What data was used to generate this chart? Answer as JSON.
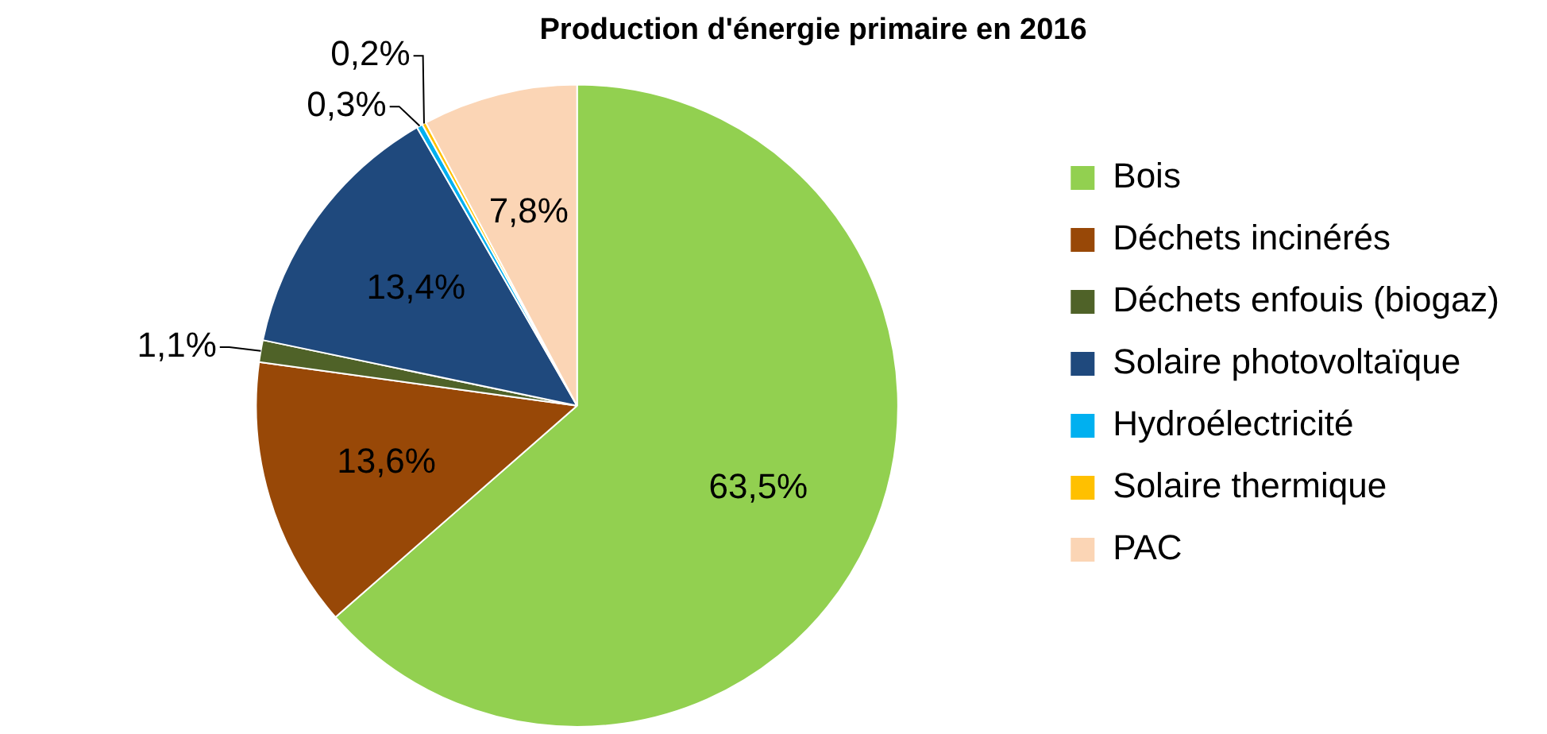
{
  "chart_data": {
    "type": "pie",
    "title": "Production d'énergie primaire en 2016",
    "categories": [
      "Bois",
      "Déchets incinérés",
      "Déchets enfouis (biogaz)",
      "Solaire photovoltaïque",
      "Hydroélectricité",
      "Solaire thermique",
      "PAC"
    ],
    "values": [
      63.5,
      13.6,
      1.1,
      13.4,
      0.3,
      0.2,
      7.8
    ],
    "colors": [
      "#92d050",
      "#984807",
      "#4f6228",
      "#1f497d",
      "#00b0f0",
      "#ffc000",
      "#fbd5b5"
    ],
    "value_labels": [
      "63,5%",
      "13,6%",
      "1,1%",
      "13,4%",
      "0,3%",
      "0,2%",
      "7,8%"
    ],
    "legend": "right"
  }
}
